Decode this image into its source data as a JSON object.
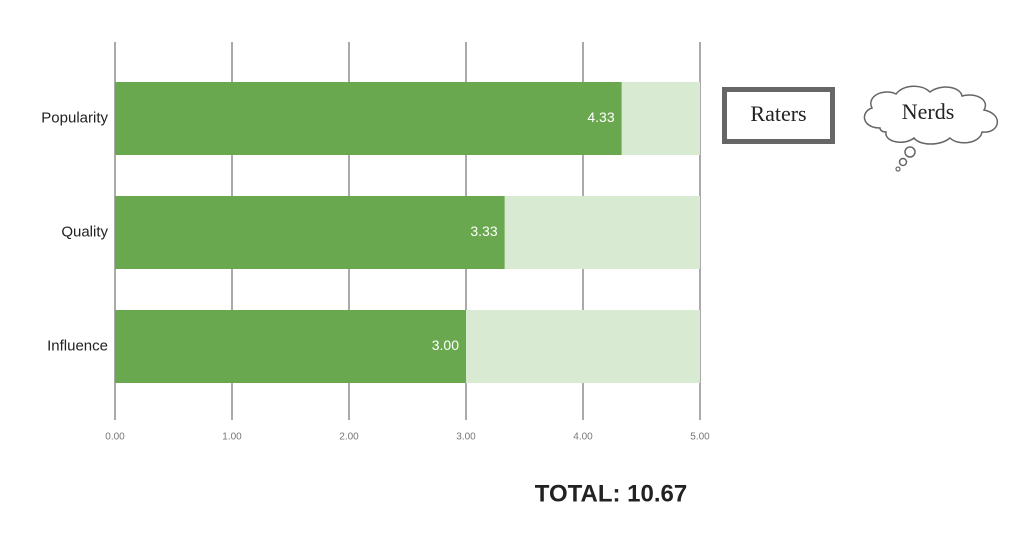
{
  "chart_data": {
    "type": "bar",
    "orientation": "horizontal",
    "categories": [
      "Popularity",
      "Quality",
      "Influence"
    ],
    "values": [
      4.33,
      3.33,
      3
    ],
    "value_labels": [
      "4.33",
      "3.33",
      "3.00"
    ],
    "color": "#6aa84f",
    "track_color": "#d9ead3",
    "xlim": [
      0,
      5
    ],
    "xticks": [
      {
        "value": 0,
        "label": "0.00"
      },
      {
        "value": 1,
        "label": "1.00"
      },
      {
        "value": 2,
        "label": "2.00"
      },
      {
        "value": 3,
        "label": "3.00"
      },
      {
        "value": 4,
        "label": "4.00"
      },
      {
        "value": 5,
        "label": "5.00"
      }
    ],
    "grid": true,
    "annotations": {
      "raters": "Raters",
      "nerds": "Nerds",
      "total": "TOTAL: 10.67"
    }
  }
}
